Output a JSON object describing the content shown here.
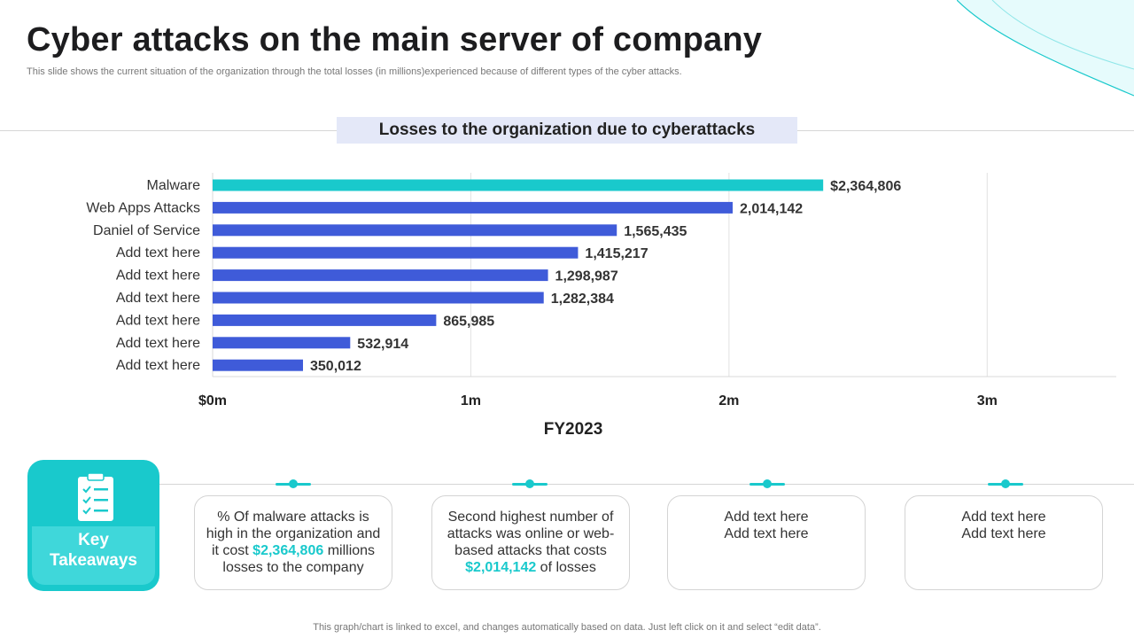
{
  "page": {
    "title": "Cyber attacks on the main server of company",
    "subtitle": "This slide shows the current situation of the organization through the total losses (in millions)experienced because of different types of the cyber attacks.",
    "footer": "This graph/chart is linked to excel,  and changes automatically based on data. Just left click on it and select “edit data”."
  },
  "colors": {
    "accent": "#19c9cc",
    "bar": "#3f5bd9",
    "header_bg": "#e4e8f8"
  },
  "chart_data": {
    "type": "bar",
    "orientation": "horizontal",
    "title": "Losses to the organization due to cyberattacks",
    "xlabel": "FY2023",
    "ylabel": "",
    "categories": [
      "Malware",
      "Web Apps Attacks",
      "Daniel of Service",
      "Add text here",
      "Add text here",
      "Add text here",
      "Add text here",
      "Add text here",
      "Add text here"
    ],
    "values": [
      2364806,
      2014142,
      1565435,
      1415217,
      1298987,
      1282384,
      865985,
      532914,
      350012
    ],
    "value_labels": [
      "$2,364,806",
      "2,014,142",
      "1,565,435",
      "1,415,217",
      "1,298,987",
      "1,282,384",
      "865,985",
      "532,914",
      "350,012"
    ],
    "highlight_index": 0,
    "xlim": [
      0,
      3500000
    ],
    "ticks": [
      0,
      1000000,
      2000000,
      3000000
    ],
    "tick_labels": [
      "$0m",
      "1m",
      "2m",
      "3m"
    ],
    "grid": true,
    "legend": "none"
  },
  "key_takeaways": {
    "label_line1": "Key",
    "label_line2": "Takeaways",
    "icon": "clipboard-checklist-icon",
    "items": [
      {
        "text_before": "% Of malware attacks is high in the organization and it cost ",
        "highlight": "$2,364,806",
        "text_after": " millions losses to the company"
      },
      {
        "text_before": "Second highest number of attacks was online or web-based attacks that costs ",
        "highlight": "$2,014,142",
        "text_after": " of losses"
      },
      {
        "line1": "Add text here",
        "line2": "Add text here"
      },
      {
        "line1": "Add text here",
        "line2": "Add text here"
      }
    ]
  }
}
